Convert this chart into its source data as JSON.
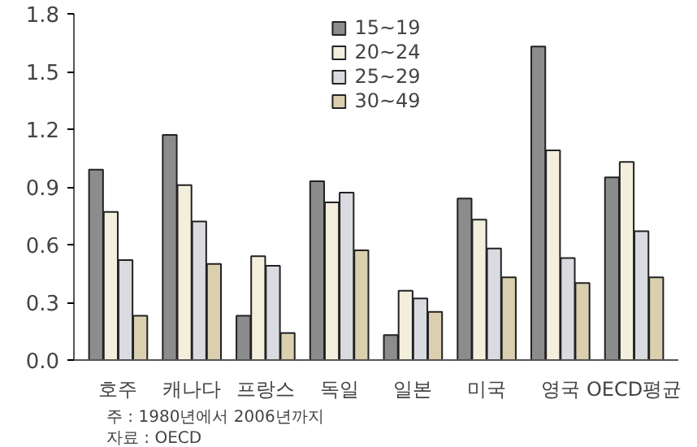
{
  "chart_data": {
    "type": "bar",
    "categories": [
      "호주",
      "캐나다",
      "프랑스",
      "독일",
      "일본",
      "미국",
      "영국",
      "OECD평균"
    ],
    "series": [
      {
        "name": "15~19",
        "color": "#8c8c8c",
        "values": [
          0.99,
          1.17,
          0.23,
          0.93,
          0.13,
          0.84,
          1.63,
          0.95
        ]
      },
      {
        "name": "20~24",
        "color": "#f4efdd",
        "values": [
          0.77,
          0.91,
          0.54,
          0.82,
          0.36,
          0.73,
          1.09,
          1.03
        ]
      },
      {
        "name": "25~29",
        "color": "#dadbe0",
        "values": [
          0.52,
          0.72,
          0.49,
          0.87,
          0.32,
          0.58,
          0.53,
          0.67
        ]
      },
      {
        "name": "30~49",
        "color": "#dad0b0",
        "values": [
          0.23,
          0.5,
          0.14,
          0.57,
          0.25,
          0.43,
          0.4,
          0.43
        ]
      }
    ],
    "ylim": [
      0,
      1.8
    ],
    "yticks": [
      {
        "value": 0,
        "label": "0.0"
      },
      0.3,
      0.6,
      0.9,
      1.2,
      1.5,
      1.8
    ],
    "grid": false,
    "legend": "top",
    "annotations": [
      "주 : 1980년에서 2006년까지",
      "자료 : OECD"
    ]
  }
}
